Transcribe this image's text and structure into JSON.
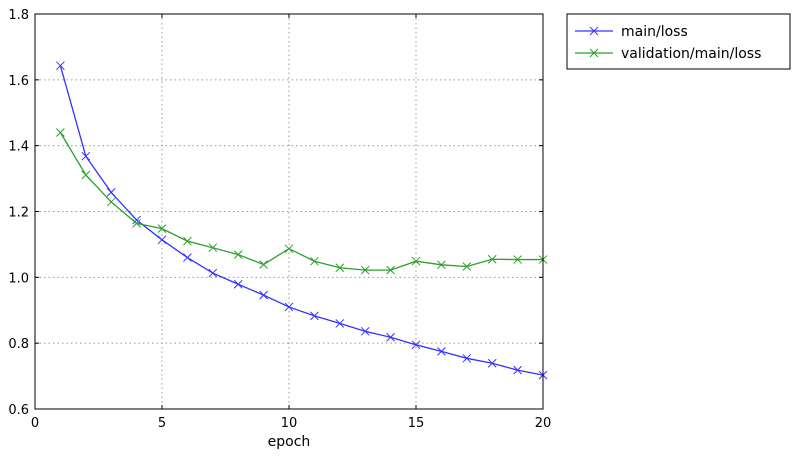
{
  "chart_data": {
    "type": "line",
    "xlabel": "epoch",
    "ylabel": "",
    "xlim": [
      0,
      20
    ],
    "ylim": [
      0.6,
      1.8
    ],
    "xticks": [
      0,
      5,
      10,
      15,
      20
    ],
    "yticks": [
      0.6,
      0.8,
      1.0,
      1.2,
      1.4,
      1.6,
      1.8
    ],
    "ytick_labels": [
      "0.6",
      "0.8",
      "1.0",
      "1.2",
      "1.4",
      "1.6",
      "1.8"
    ],
    "grid": true,
    "legend_position": "outside-top-right",
    "x": [
      1,
      2,
      3,
      4,
      5,
      6,
      7,
      8,
      9,
      10,
      11,
      12,
      13,
      14,
      15,
      16,
      17,
      18,
      19,
      20
    ],
    "series": [
      {
        "name": "main/loss",
        "color": "#3333ff",
        "marker": "x",
        "values": [
          1.643,
          1.368,
          1.258,
          1.174,
          1.114,
          1.06,
          1.013,
          0.979,
          0.946,
          0.91,
          0.883,
          0.86,
          0.836,
          0.818,
          0.795,
          0.775,
          0.754,
          0.739,
          0.718,
          0.703
        ]
      },
      {
        "name": "validation/main/loss",
        "color": "#2ca02c",
        "marker": "x",
        "values": [
          1.44,
          1.311,
          1.229,
          1.164,
          1.148,
          1.11,
          1.09,
          1.069,
          1.039,
          1.087,
          1.049,
          1.029,
          1.022,
          1.022,
          1.049,
          1.038,
          1.033,
          1.055,
          1.054,
          1.054
        ]
      }
    ]
  }
}
